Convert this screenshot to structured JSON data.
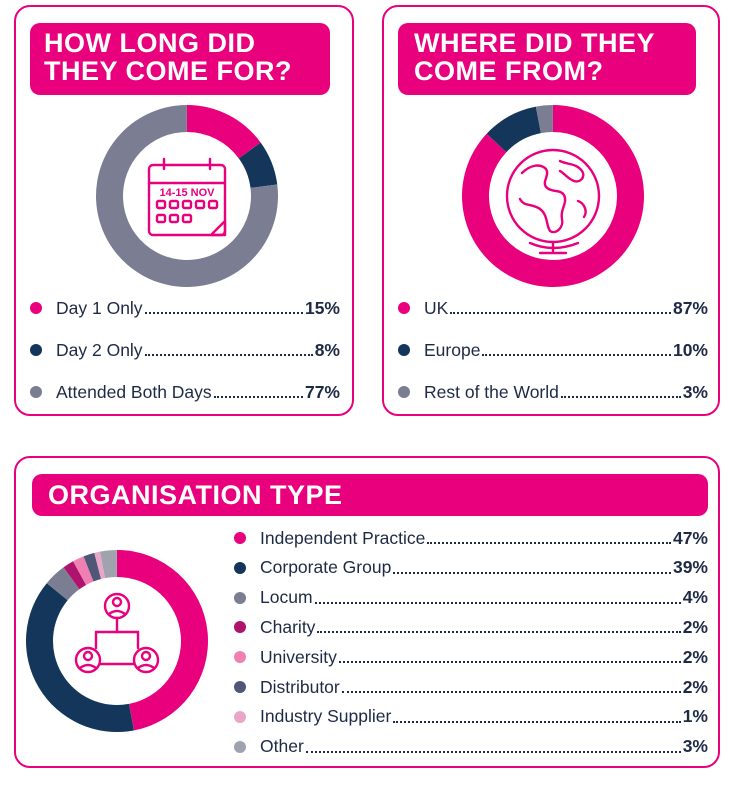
{
  "colors": {
    "accent": "#e8007d",
    "navy": "#14365a",
    "grey": "#7b7d93"
  },
  "panels": [
    {
      "id": "duration",
      "title_lines": [
        "HOW LONG DID",
        "THEY COME FOR?"
      ],
      "icon": "calendar-icon",
      "icon_text": "14-15 NOV",
      "chart_data": {
        "type": "pie",
        "title": "HOW LONG DID THEY COME FOR?",
        "categories": [
          "Day 1 Only",
          "Day 2 Only",
          "Attended Both Days"
        ],
        "values": [
          15,
          8,
          77
        ],
        "labels": [
          "15%",
          "8%",
          "77%"
        ],
        "colors": [
          "#e8007d",
          "#14365a",
          "#7b7d93"
        ]
      }
    },
    {
      "id": "origin",
      "title_lines": [
        "WHERE DID THEY",
        "COME FROM?"
      ],
      "icon": "globe-icon",
      "chart_data": {
        "type": "pie",
        "title": "WHERE DID THEY COME FROM?",
        "categories": [
          "UK",
          "Europe",
          "Rest of the World"
        ],
        "values": [
          87,
          10,
          3
        ],
        "labels": [
          "87%",
          "10%",
          "3%"
        ],
        "colors": [
          "#e8007d",
          "#14365a",
          "#7b7d93"
        ]
      }
    },
    {
      "id": "organisation",
      "title_lines": [
        "ORGANISATION TYPE"
      ],
      "icon": "people-network-icon",
      "chart_data": {
        "type": "pie",
        "title": "ORGANISATION TYPE",
        "categories": [
          "Independent Practice",
          "Corporate Group",
          "Locum",
          "Charity",
          "University",
          "Distributor",
          "Industry Supplier",
          "Other"
        ],
        "values": [
          47,
          39,
          4,
          2,
          2,
          2,
          1,
          3
        ],
        "labels": [
          "47%",
          "39%",
          "4%",
          "2%",
          "2%",
          "2%",
          "1%",
          "3%"
        ],
        "colors": [
          "#e8007d",
          "#14365a",
          "#7b7d93",
          "#b0136e",
          "#f07fb4",
          "#4f5676",
          "#eaa6c8",
          "#a0a2ad"
        ]
      }
    }
  ]
}
